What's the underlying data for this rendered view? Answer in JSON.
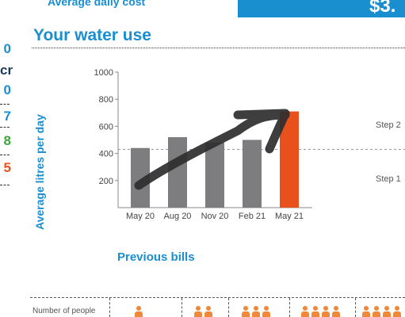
{
  "header": {
    "avg_cost_label": "Average daily cost",
    "avg_cost_value": "$3."
  },
  "section": {
    "title": "Your water use"
  },
  "side_values": [
    {
      "text": "0",
      "color": "#1a8fd0"
    },
    {
      "text": "cr",
      "color": "#1a3a5c"
    },
    {
      "text": "0",
      "color": "#1a8fd0"
    },
    {
      "text": "7",
      "color": "#1a8fd0"
    },
    {
      "text": "8",
      "color": "#3aa63a"
    },
    {
      "text": "5",
      "color": "#e8501c"
    }
  ],
  "chart_data": {
    "type": "bar",
    "categories": [
      "May 20",
      "Aug 20",
      "Nov 20",
      "Feb 21",
      "May 21"
    ],
    "values": [
      440,
      520,
      480,
      500,
      710
    ],
    "ylim": [
      0,
      1000
    ],
    "yticks": [
      "200",
      "400",
      "600",
      "800",
      "1000"
    ],
    "ylabel": "Average litres per day",
    "thresholds": [
      {
        "label": "Step 2",
        "value": 430
      },
      {
        "label": "Step 1",
        "value": 430
      }
    ],
    "bar_color": "#7d7d80",
    "highlight_color": "#e8501c",
    "grid": false
  },
  "footer": {
    "previous_bills": "Previous bills",
    "people_label": "Number of people",
    "people_groups": [
      1,
      2,
      3,
      4,
      4
    ]
  },
  "colors": {
    "accent": "#1a8fd0",
    "people_icon": "#f0883a"
  }
}
